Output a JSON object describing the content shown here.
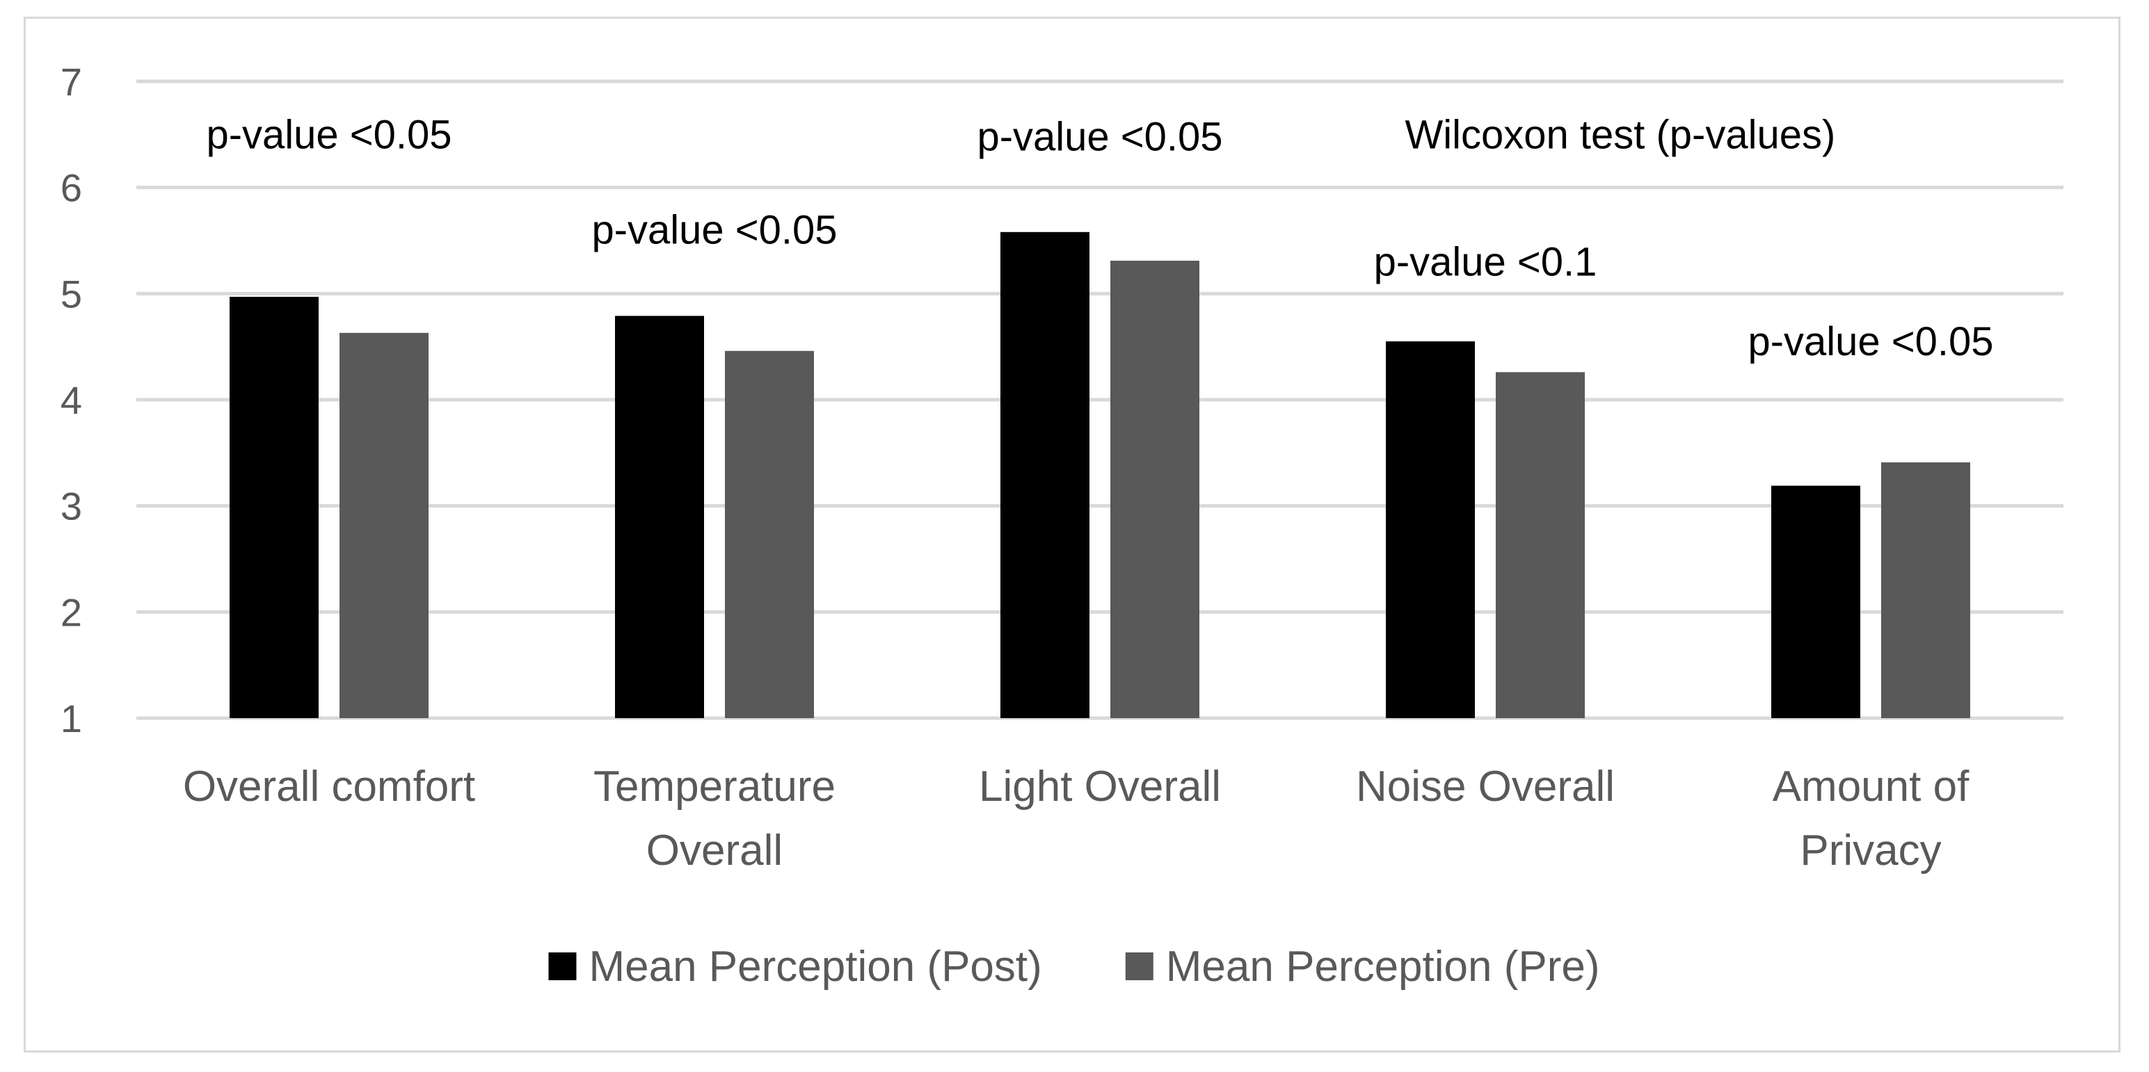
{
  "chart_data": {
    "type": "bar",
    "title": "",
    "xlabel": "",
    "ylabel": "",
    "ylim": [
      1,
      7
    ],
    "yticks": [
      1,
      2,
      3,
      4,
      5,
      6,
      7
    ],
    "grid": true,
    "legend_position": "bottom",
    "categories": [
      [
        "Overall comfort"
      ],
      [
        "Temperature",
        "Overall"
      ],
      [
        "Light Overall"
      ],
      [
        "Noise Overall"
      ],
      [
        "Amount of",
        "Privacy"
      ]
    ],
    "series": [
      {
        "name": "Mean Perception (Post)",
        "color": "#000000",
        "values": [
          4.97,
          4.79,
          5.58,
          4.55,
          3.19
        ]
      },
      {
        "name": "Mean Perception (Pre)",
        "color": "#595959",
        "values": [
          4.63,
          4.46,
          5.31,
          4.26,
          3.41
        ]
      }
    ],
    "annotations": [
      {
        "text": "p-value <0.05",
        "category_index": 0,
        "y": 6.5
      },
      {
        "text": "p-value <0.05",
        "category_index": 1,
        "y": 5.6
      },
      {
        "text": "p-value <0.05",
        "category_index": 2,
        "y": 6.48
      },
      {
        "text": "p-value <0.1",
        "category_index": 3,
        "y": 5.3
      },
      {
        "text": "p-value <0.05",
        "category_index": 4,
        "y": 4.55
      },
      {
        "text": "Wilcoxon test (p-values)",
        "category_index": 3.35,
        "y": 6.5
      }
    ]
  }
}
